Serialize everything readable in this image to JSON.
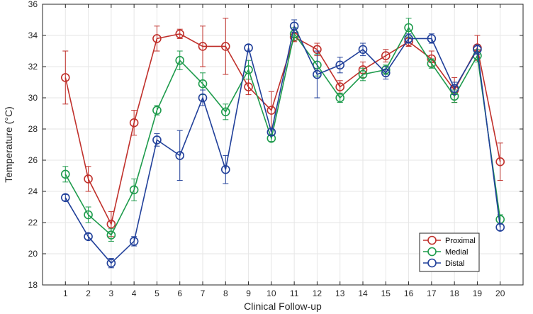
{
  "chart_data": {
    "type": "line",
    "title": "",
    "xlabel": "Clinical Follow-up",
    "ylabel": "Temperature (°C)",
    "xlim": [
      0,
      21
    ],
    "ylim": [
      18,
      36
    ],
    "xticks": [
      1,
      2,
      3,
      4,
      5,
      6,
      7,
      8,
      9,
      10,
      11,
      12,
      13,
      14,
      15,
      16,
      17,
      18,
      19,
      20
    ],
    "yticks": [
      18,
      20,
      22,
      24,
      26,
      28,
      30,
      32,
      34,
      36
    ],
    "grid": true,
    "legend_position": "bottom-right",
    "x": [
      1,
      2,
      3,
      4,
      5,
      6,
      7,
      8,
      9,
      10,
      11,
      12,
      13,
      14,
      15,
      16,
      17,
      18,
      19,
      20
    ],
    "series": [
      {
        "name": "Proximal",
        "color": "#C0302B",
        "values": [
          31.3,
          24.8,
          21.9,
          28.4,
          33.8,
          34.1,
          33.3,
          33.3,
          30.7,
          29.2,
          33.9,
          33.1,
          30.7,
          31.8,
          32.7,
          33.6,
          32.5,
          30.5,
          33.2,
          25.9
        ],
        "errors": [
          1.7,
          0.8,
          0.8,
          0.8,
          0.8,
          0.3,
          1.3,
          1.8,
          0.5,
          1.2,
          0.3,
          0.4,
          0.4,
          0.5,
          0.4,
          0.3,
          0.5,
          0.8,
          0.8,
          1.2
        ]
      },
      {
        "name": "Medial",
        "color": "#1E9B4C",
        "values": [
          25.1,
          22.5,
          21.2,
          24.1,
          29.2,
          32.4,
          30.9,
          29.1,
          31.8,
          27.4,
          34.1,
          32.1,
          30.0,
          31.5,
          31.8,
          34.5,
          32.2,
          30.1,
          32.7,
          22.2
        ],
        "errors": [
          0.5,
          0.5,
          0.4,
          0.7,
          0.3,
          0.6,
          0.7,
          0.5,
          0.6,
          0.2,
          0.4,
          0.7,
          0.3,
          0.4,
          0.3,
          0.6,
          0.3,
          0.4,
          0.4,
          0.3
        ]
      },
      {
        "name": "Distal",
        "color": "#21409A",
        "values": [
          23.6,
          21.1,
          19.4,
          20.8,
          27.3,
          26.3,
          30.0,
          25.4,
          33.2,
          27.8,
          34.6,
          31.5,
          32.1,
          33.1,
          31.6,
          33.8,
          33.8,
          30.6,
          33.1,
          21.7
        ],
        "errors": [
          0.2,
          0.2,
          0.3,
          0.3,
          0.4,
          1.6,
          0.5,
          0.9,
          0.2,
          0.2,
          0.4,
          1.5,
          0.5,
          0.4,
          0.4,
          0.3,
          0.3,
          0.4,
          0.3,
          0.2
        ]
      }
    ]
  }
}
